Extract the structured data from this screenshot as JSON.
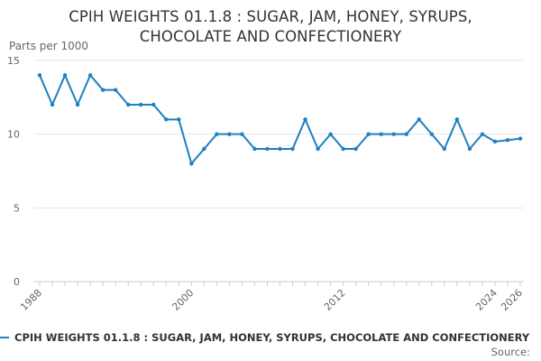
{
  "chart_data": {
    "type": "line",
    "title_line1": "CPIH WEIGHTS 01.1.8 : SUGAR, JAM, HONEY, SYRUPS,",
    "title_line2": "CHOCOLATE AND CONFECTIONERY",
    "ylabel": "Parts per 1000",
    "xlabel": "",
    "ylim": [
      0,
      15
    ],
    "yticks": [
      0,
      5,
      10,
      15
    ],
    "xlim": [
      1988,
      2026
    ],
    "xtick_labels": [
      "1988",
      "2000",
      "2012",
      "2024",
      "2026"
    ],
    "grid": "horizontal",
    "series": [
      {
        "name": "CPIH WEIGHTS 01.1.8 : SUGAR, JAM, HONEY, SYRUPS, CHOCOLATE AND CONFECTIONERY",
        "color": "#1f80c0",
        "x": [
          1988,
          1989,
          1990,
          1991,
          1992,
          1993,
          1994,
          1995,
          1996,
          1997,
          1998,
          1999,
          2000,
          2001,
          2002,
          2003,
          2004,
          2005,
          2006,
          2007,
          2008,
          2009,
          2010,
          2011,
          2012,
          2013,
          2014,
          2015,
          2016,
          2017,
          2018,
          2019,
          2020,
          2021,
          2022,
          2023,
          2024,
          2025,
          2026
        ],
        "values": [
          14,
          12,
          14,
          12,
          14,
          13,
          13,
          12,
          12,
          12,
          11,
          11,
          8,
          9,
          10,
          10,
          10,
          9,
          9,
          9,
          9,
          11,
          9,
          10,
          9,
          9,
          10,
          10,
          10,
          10,
          11,
          10,
          9,
          11,
          9,
          10,
          9.5,
          9.6,
          9.7
        ]
      }
    ]
  },
  "legend": {
    "label": "CPIH WEIGHTS 01.1.8 : SUGAR, JAM, HONEY, SYRUPS, CHOCOLATE AND CONFECTIONERY"
  },
  "source": {
    "label": "Source:"
  }
}
